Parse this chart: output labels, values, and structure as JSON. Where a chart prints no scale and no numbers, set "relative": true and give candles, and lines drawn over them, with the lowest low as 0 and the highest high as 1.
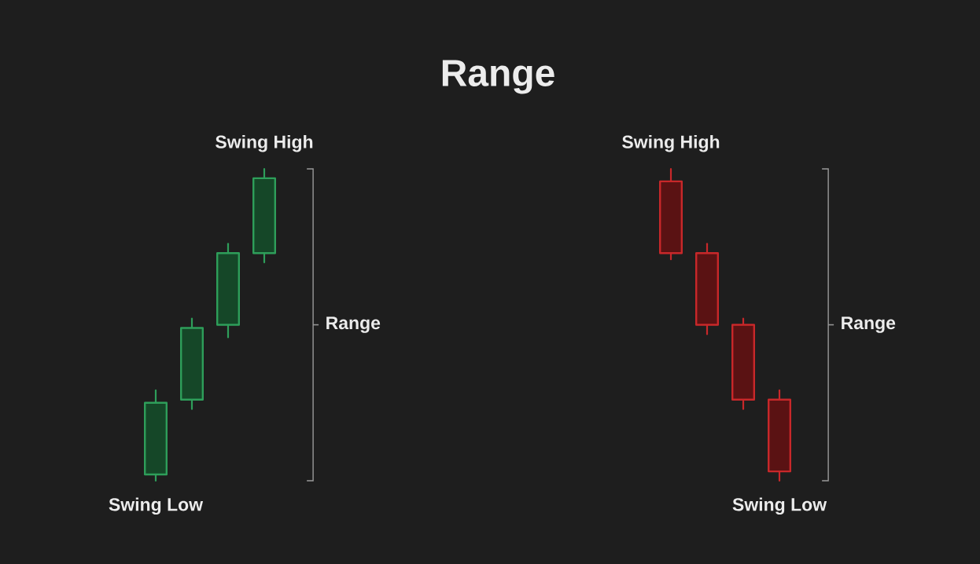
{
  "chart_data": [
    {
      "type": "other",
      "title": "Range"
    },
    {
      "type": "candlestick",
      "relative": true,
      "color": "#2e9e5a",
      "categories": [
        null,
        null,
        null,
        null
      ],
      "ohlc": [
        [
          0.02,
          0.29,
          0,
          0.25
        ],
        [
          0.26,
          0.52,
          0.23,
          0.49
        ],
        [
          0.5,
          0.76,
          0.46,
          0.73
        ],
        [
          0.73,
          1,
          0.7,
          0.97
        ]
      ],
      "annotations": [
        {
          "text": "Swing High",
          "y": 1
        },
        {
          "text": "Swing Low",
          "y": 0
        },
        "Range"
      ]
    },
    {
      "type": "candlestick",
      "relative": true,
      "color": "#c8282a",
      "categories": [
        null,
        null,
        null,
        null
      ],
      "ohlc": [
        [
          0.96,
          1,
          0.71,
          0.73
        ],
        [
          0.73,
          0.76,
          0.47,
          0.5
        ],
        [
          0.5,
          0.52,
          0.23,
          0.26
        ],
        [
          0.26,
          0.29,
          0,
          0.03
        ]
      ],
      "annotations": [
        {
          "text": "Swing High",
          "y": 1
        },
        {
          "text": "Swing Low",
          "y": 0
        },
        "Range"
      ]
    }
  ]
}
